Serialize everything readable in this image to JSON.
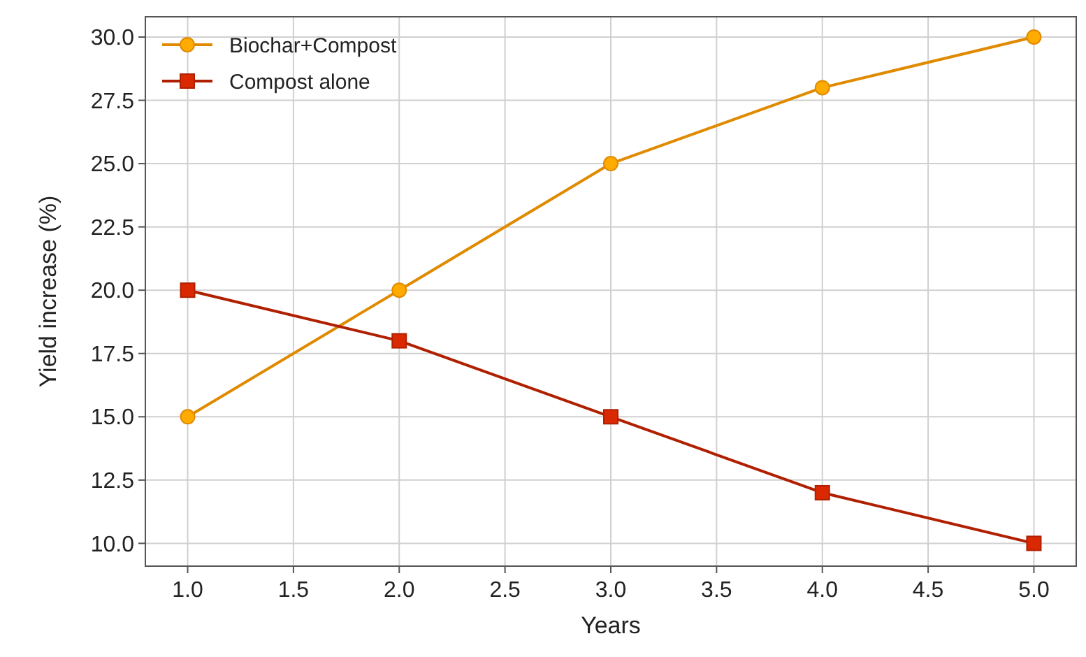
{
  "chart_data": {
    "type": "line",
    "xlabel": "Years",
    "ylabel": "Yield increase (%)",
    "x": [
      1,
      2,
      3,
      4,
      5
    ],
    "series": [
      {
        "name": "Biochar+Compost",
        "color": "#e08a00",
        "marker": "circle",
        "values": [
          15,
          20,
          25,
          28,
          30
        ]
      },
      {
        "name": "Compost alone",
        "color": "#b02000",
        "marker": "square",
        "values": [
          20,
          18,
          15,
          12,
          10
        ]
      }
    ],
    "xlim": [
      0.8,
      5.2
    ],
    "xticks": [
      {
        "value": 1,
        "label": "1.0"
      },
      {
        "value": 1.5,
        "label": "1.5"
      },
      {
        "value": 2,
        "label": "2.0"
      },
      {
        "value": 2.5,
        "label": "2.5"
      },
      {
        "value": 3,
        "label": "3.0"
      },
      {
        "value": 3.5,
        "label": "3.5"
      },
      {
        "value": 4,
        "label": "4.0"
      },
      {
        "value": 4.5,
        "label": "4.5"
      },
      {
        "value": 5,
        "label": "5.0"
      }
    ],
    "ylim": [
      9.1,
      30.8
    ],
    "yticks": [
      {
        "value": 10,
        "label": "10.0"
      },
      {
        "value": 12.5,
        "label": "12.5"
      },
      {
        "value": 15,
        "label": "15.0"
      },
      {
        "value": 17.5,
        "label": "17.5"
      },
      {
        "value": 20,
        "label": "20.0"
      },
      {
        "value": 22.5,
        "label": "22.5"
      },
      {
        "value": 25,
        "label": "25.0"
      },
      {
        "value": 27.5,
        "label": "27.5"
      },
      {
        "value": 30,
        "label": "30.0"
      }
    ],
    "grid": true,
    "legend": "top left",
    "line_style": "solid"
  }
}
